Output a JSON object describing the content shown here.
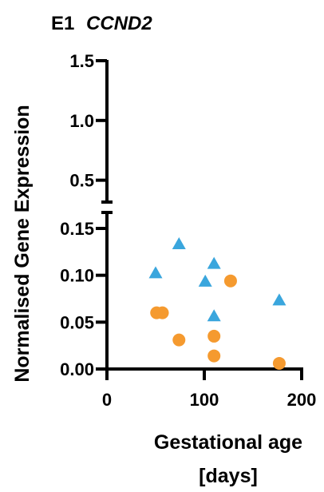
{
  "chart_data": {
    "type": "scatter",
    "title_prefix": "E1",
    "title_gene": "CCND2",
    "xlabel_line1": "Gestational age",
    "xlabel_line2": "[days]",
    "ylabel": "Normalised Gene Expression",
    "xlim": [
      0,
      200
    ],
    "x_ticks": [
      "0",
      "100",
      "200"
    ],
    "y_axis_broken": true,
    "ylim_lower": [
      0,
      0.15
    ],
    "ylim_upper": [
      0.15,
      1.5
    ],
    "y_ticks_lower": [
      "0.00",
      "0.05",
      "0.10",
      "0.15"
    ],
    "y_ticks_upper": [
      "0.5",
      "1.0",
      "1.5"
    ],
    "colors": {
      "triangle": "#3aa6dd",
      "circle": "#f59a2f"
    },
    "series": [
      {
        "marker": "triangle",
        "points": [
          {
            "x": 50,
            "y": 0.102
          },
          {
            "x": 74,
            "y": 0.133
          },
          {
            "x": 101,
            "y": 0.093
          },
          {
            "x": 110,
            "y": 0.112
          },
          {
            "x": 110,
            "y": 0.056
          },
          {
            "x": 177,
            "y": 0.073
          }
        ]
      },
      {
        "marker": "circle",
        "points": [
          {
            "x": 51,
            "y": 0.06
          },
          {
            "x": 57,
            "y": 0.06
          },
          {
            "x": 74,
            "y": 0.031
          },
          {
            "x": 110,
            "y": 0.035
          },
          {
            "x": 110,
            "y": 0.014
          },
          {
            "x": 127,
            "y": 0.094
          },
          {
            "x": 177,
            "y": 0.006
          }
        ]
      }
    ]
  }
}
